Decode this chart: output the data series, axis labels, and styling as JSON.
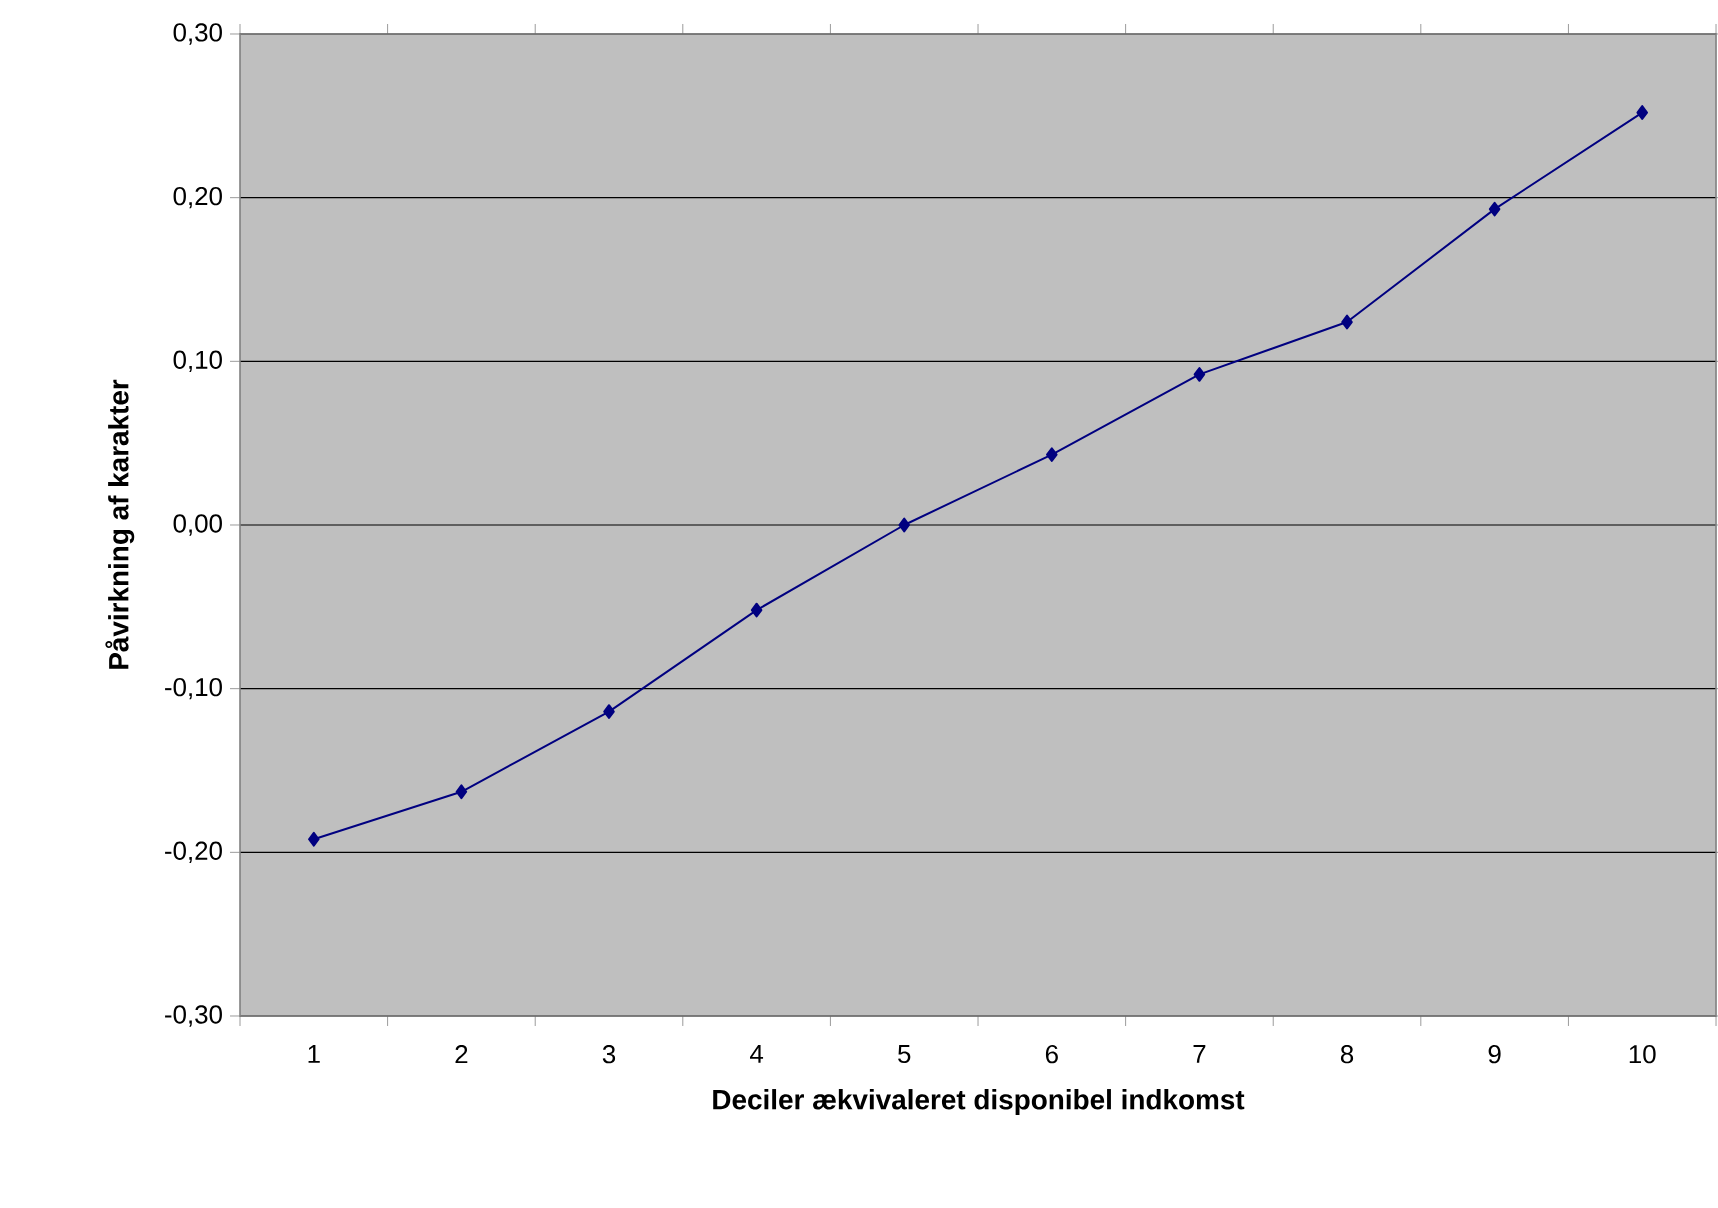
{
  "chart_data": {
    "type": "line",
    "xlabel": "Deciler ækvivaleret disponibel indkomst",
    "ylabel": "Påvirkning af karakter",
    "categories": [
      "1",
      "2",
      "3",
      "4",
      "5",
      "6",
      "7",
      "8",
      "9",
      "10"
    ],
    "series": [
      {
        "color": "#000080",
        "values": [
          -0.192,
          -0.163,
          -0.114,
          -0.052,
          0.0,
          0.043,
          0.092,
          0.124,
          0.193,
          0.252
        ]
      }
    ],
    "ylim": [
      -0.3,
      0.3
    ],
    "yticks": [
      {
        "value": -0.3,
        "label": "-0,30"
      },
      {
        "value": -0.2,
        "label": "-0,20"
      },
      {
        "value": -0.1,
        "label": "-0,10"
      },
      {
        "value": 0.0,
        "label": "0,00"
      },
      {
        "value": 0.1,
        "label": "0,10"
      },
      {
        "value": 0.2,
        "label": "0,20"
      },
      {
        "value": 0.3,
        "label": "0,30"
      }
    ],
    "grid": "y",
    "marker": "diamond",
    "line_style": "solid"
  }
}
